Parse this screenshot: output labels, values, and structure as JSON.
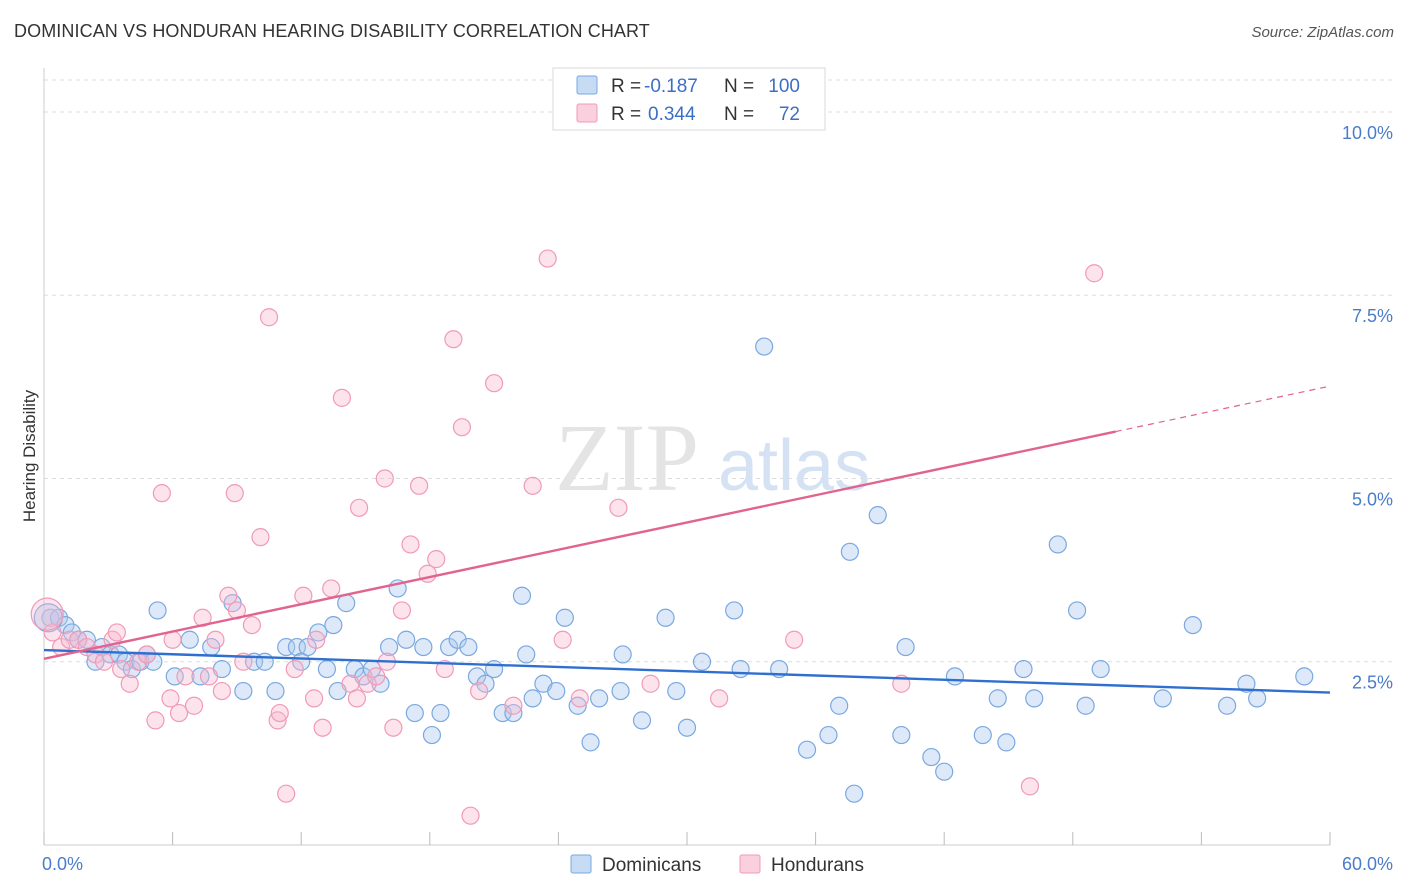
{
  "title": "DOMINICAN VS HONDURAN HEARING DISABILITY CORRELATION CHART",
  "source": "Source: ZipAtlas.com",
  "chart_data": {
    "type": "scatter",
    "title": "DOMINICAN VS HONDURAN HEARING DISABILITY CORRELATION CHART",
    "xlabel": "",
    "ylabel": "Hearing Disability",
    "xlim": [
      0,
      60
    ],
    "ylim": [
      0,
      10.6
    ],
    "x_tick_labels": [
      "0.0%",
      "60.0%"
    ],
    "y_ticks": [
      2.5,
      5.0,
      7.5,
      10.0
    ],
    "y_tick_labels": [
      "2.5%",
      "5.0%",
      "7.5%",
      "10.0%"
    ],
    "grid": true,
    "legend": {
      "position": "top-center",
      "entries": [
        {
          "name": "Dominicans",
          "r_label": "R =",
          "r": "-0.187",
          "n_label": "N =",
          "n": "100",
          "color": "#7aa8e0"
        },
        {
          "name": "Hondurans",
          "r_label": "R =",
          "r": "0.344",
          "n_label": "N =",
          "n": "72",
          "color": "#f09ab8"
        }
      ]
    },
    "series": [
      {
        "name": "Dominicans",
        "color": "#7aa8e0",
        "trend_color": "#2f6fcf",
        "trend": {
          "x0": 0,
          "y0": 2.66,
          "x1": 60,
          "y1": 2.08
        },
        "points": [
          [
            0.3,
            3.1
          ],
          [
            0.7,
            3.1
          ],
          [
            1.0,
            3.0
          ],
          [
            1.3,
            2.9
          ],
          [
            1.6,
            2.8
          ],
          [
            2.0,
            2.8
          ],
          [
            2.4,
            2.5
          ],
          [
            2.7,
            2.7
          ],
          [
            3.1,
            2.6
          ],
          [
            3.5,
            2.6
          ],
          [
            3.8,
            2.5
          ],
          [
            4.1,
            2.4
          ],
          [
            4.5,
            2.5
          ],
          [
            4.8,
            2.6
          ],
          [
            5.1,
            2.5
          ],
          [
            5.3,
            3.2
          ],
          [
            6.1,
            2.3
          ],
          [
            6.8,
            2.8
          ],
          [
            7.3,
            2.3
          ],
          [
            7.8,
            2.7
          ],
          [
            8.3,
            2.4
          ],
          [
            8.8,
            3.3
          ],
          [
            9.3,
            2.1
          ],
          [
            9.8,
            2.5
          ],
          [
            10.3,
            2.5
          ],
          [
            10.8,
            2.1
          ],
          [
            11.3,
            2.7
          ],
          [
            11.8,
            2.7
          ],
          [
            12.3,
            2.7
          ],
          [
            12.8,
            2.9
          ],
          [
            13.2,
            2.4
          ],
          [
            13.7,
            2.1
          ],
          [
            14.1,
            3.3
          ],
          [
            14.5,
            2.4
          ],
          [
            14.9,
            2.3
          ],
          [
            15.3,
            2.4
          ],
          [
            15.7,
            2.2
          ],
          [
            16.1,
            2.7
          ],
          [
            16.5,
            3.5
          ],
          [
            16.9,
            2.8
          ],
          [
            17.3,
            1.8
          ],
          [
            17.7,
            2.7
          ],
          [
            18.1,
            1.5
          ],
          [
            18.5,
            1.8
          ],
          [
            18.9,
            2.7
          ],
          [
            19.3,
            2.8
          ],
          [
            19.8,
            2.7
          ],
          [
            20.2,
            2.3
          ],
          [
            20.6,
            2.2
          ],
          [
            21.0,
            2.4
          ],
          [
            21.4,
            1.8
          ],
          [
            21.9,
            1.8
          ],
          [
            22.3,
            3.4
          ],
          [
            22.8,
            2.0
          ],
          [
            23.3,
            2.2
          ],
          [
            23.9,
            2.1
          ],
          [
            24.3,
            3.1
          ],
          [
            24.9,
            1.9
          ],
          [
            25.5,
            1.4
          ],
          [
            25.9,
            2.0
          ],
          [
            26.9,
            2.1
          ],
          [
            27.9,
            1.7
          ],
          [
            29.0,
            3.1
          ],
          [
            29.5,
            2.1
          ],
          [
            30.7,
            2.5
          ],
          [
            32.2,
            3.2
          ],
          [
            32.5,
            2.4
          ],
          [
            33.6,
            6.8
          ],
          [
            34.3,
            2.4
          ],
          [
            35.6,
            1.3
          ],
          [
            36.6,
            1.5
          ],
          [
            37.1,
            1.9
          ],
          [
            37.6,
            4.0
          ],
          [
            37.8,
            0.7
          ],
          [
            38.9,
            4.5
          ],
          [
            40.0,
            1.5
          ],
          [
            40.2,
            2.7
          ],
          [
            41.4,
            1.2
          ],
          [
            42.0,
            1.0
          ],
          [
            42.5,
            2.3
          ],
          [
            43.8,
            1.5
          ],
          [
            44.5,
            2.0
          ],
          [
            44.9,
            1.4
          ],
          [
            45.7,
            2.4
          ],
          [
            46.2,
            2.0
          ],
          [
            47.3,
            4.1
          ],
          [
            48.2,
            3.2
          ],
          [
            48.6,
            1.9
          ],
          [
            49.3,
            2.4
          ],
          [
            52.2,
            2.0
          ],
          [
            53.6,
            3.0
          ],
          [
            55.2,
            1.9
          ],
          [
            56.1,
            2.2
          ],
          [
            56.6,
            2.0
          ],
          [
            58.8,
            2.3
          ],
          [
            22.5,
            2.6
          ],
          [
            13.5,
            3.0
          ],
          [
            27.0,
            2.6
          ],
          [
            30.0,
            1.6
          ],
          [
            12.0,
            2.5
          ]
        ]
      },
      {
        "name": "Hondurans",
        "color": "#f09ab8",
        "trend_color": "#e0648f",
        "trend": {
          "x0": 0,
          "y0": 2.54,
          "x1": 50,
          "y1": 5.64
        },
        "trend_extension": {
          "x0": 50,
          "y0": 5.64,
          "x1": 60,
          "y1": 6.26
        },
        "points": [
          [
            0.4,
            2.9
          ],
          [
            0.8,
            2.7
          ],
          [
            1.2,
            2.8
          ],
          [
            1.6,
            2.8
          ],
          [
            2.0,
            2.7
          ],
          [
            2.4,
            2.6
          ],
          [
            2.8,
            2.5
          ],
          [
            3.2,
            2.8
          ],
          [
            3.6,
            2.4
          ],
          [
            4.0,
            2.2
          ],
          [
            4.4,
            2.5
          ],
          [
            4.8,
            2.6
          ],
          [
            5.2,
            1.7
          ],
          [
            5.5,
            4.8
          ],
          [
            5.9,
            2.0
          ],
          [
            6.3,
            1.8
          ],
          [
            6.6,
            2.3
          ],
          [
            7.0,
            1.9
          ],
          [
            7.4,
            3.1
          ],
          [
            7.7,
            2.3
          ],
          [
            8.0,
            2.8
          ],
          [
            8.3,
            2.1
          ],
          [
            8.6,
            3.4
          ],
          [
            8.9,
            4.8
          ],
          [
            9.3,
            2.5
          ],
          [
            9.7,
            3.0
          ],
          [
            10.1,
            4.2
          ],
          [
            10.5,
            7.2
          ],
          [
            10.9,
            1.7
          ],
          [
            11.3,
            0.7
          ],
          [
            11.7,
            2.4
          ],
          [
            12.1,
            3.4
          ],
          [
            12.6,
            2.0
          ],
          [
            13.0,
            1.6
          ],
          [
            13.4,
            3.5
          ],
          [
            13.9,
            6.1
          ],
          [
            14.3,
            2.2
          ],
          [
            14.7,
            4.6
          ],
          [
            15.1,
            2.2
          ],
          [
            15.5,
            2.3
          ],
          [
            15.9,
            5.0
          ],
          [
            16.3,
            1.6
          ],
          [
            16.7,
            3.2
          ],
          [
            17.1,
            4.1
          ],
          [
            17.5,
            4.9
          ],
          [
            17.9,
            3.7
          ],
          [
            18.3,
            3.9
          ],
          [
            18.7,
            2.4
          ],
          [
            19.1,
            6.9
          ],
          [
            19.5,
            5.7
          ],
          [
            19.9,
            0.4
          ],
          [
            20.3,
            2.1
          ],
          [
            21.0,
            6.3
          ],
          [
            21.9,
            1.9
          ],
          [
            22.8,
            4.9
          ],
          [
            23.5,
            8.0
          ],
          [
            24.2,
            2.8
          ],
          [
            25.0,
            2.0
          ],
          [
            26.8,
            4.6
          ],
          [
            28.3,
            2.2
          ],
          [
            31.5,
            2.0
          ],
          [
            35.0,
            2.8
          ],
          [
            40.0,
            2.2
          ],
          [
            46.0,
            0.8
          ],
          [
            49.0,
            7.8
          ],
          [
            9.0,
            3.2
          ],
          [
            12.7,
            2.8
          ],
          [
            16.0,
            2.5
          ],
          [
            6.0,
            2.8
          ],
          [
            3.4,
            2.9
          ],
          [
            11.0,
            1.8
          ],
          [
            14.6,
            2.0
          ]
        ]
      }
    ]
  },
  "bottom_legend": [
    {
      "label": "Dominicans",
      "color": "#7aa8e0"
    },
    {
      "label": "Hondurans",
      "color": "#f09ab8"
    }
  ],
  "watermark": {
    "part1": "ZIP",
    "part2": "atlas"
  }
}
